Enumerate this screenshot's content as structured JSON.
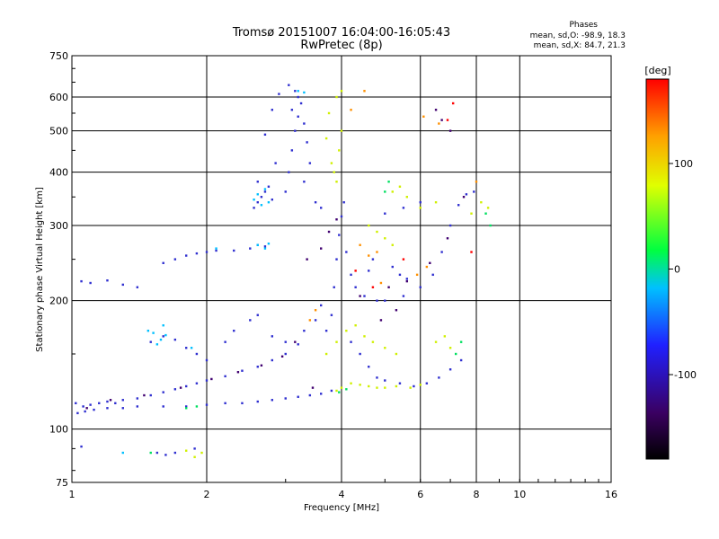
{
  "chart_data": {
    "type": "scatter",
    "title": "Tromsø 20151007 16:04:00-16:05:43",
    "subtitle": "RwPretec (8p)",
    "xlabel": "Frequency [MHz]",
    "ylabel": "Stationary phase Virtual Height [km]",
    "x_scale": "log",
    "y_scale": "log",
    "xlim": [
      1,
      16
    ],
    "ylim": [
      75,
      750
    ],
    "x_ticks": [
      1,
      2,
      4,
      6,
      8,
      10,
      16
    ],
    "y_ticks": [
      75,
      100,
      200,
      300,
      400,
      500,
      600,
      750
    ],
    "grid": true,
    "phase_stats": {
      "heading": "Phases",
      "o_line": "mean, sd,O: -98.9, 18.3",
      "x_line": "mean, sd,X:  84.7, 21.3"
    },
    "colorbar": {
      "label": "[deg]",
      "range": [
        -180,
        180
      ],
      "ticks": [
        100,
        0,
        -100
      ],
      "colormap": [
        "#000000",
        "#3a0060",
        "#2020ff",
        "#00c0ff",
        "#00ff40",
        "#e0ff00",
        "#ffa000",
        "#ff0000"
      ]
    },
    "series": [
      {
        "phase": -100,
        "color": "#3030d0",
        "points": [
          [
            1.02,
            115
          ],
          [
            1.06,
            113
          ],
          [
            1.1,
            114
          ],
          [
            1.15,
            115
          ],
          [
            1.2,
            116
          ],
          [
            1.25,
            115
          ],
          [
            1.3,
            117
          ],
          [
            1.4,
            118
          ],
          [
            1.5,
            120
          ],
          [
            1.6,
            122
          ],
          [
            1.7,
            124
          ],
          [
            1.8,
            126
          ],
          [
            1.9,
            128
          ],
          [
            2.0,
            130
          ],
          [
            2.2,
            133
          ],
          [
            2.4,
            137
          ],
          [
            2.6,
            140
          ],
          [
            2.8,
            145
          ],
          [
            3.0,
            150
          ],
          [
            3.2,
            158
          ],
          [
            1.03,
            109
          ],
          [
            1.07,
            110
          ],
          [
            1.12,
            111
          ],
          [
            1.2,
            112
          ],
          [
            1.3,
            112
          ],
          [
            1.4,
            113
          ],
          [
            1.6,
            113
          ],
          [
            1.8,
            113
          ],
          [
            2.0,
            114
          ],
          [
            2.2,
            115
          ],
          [
            2.4,
            115
          ],
          [
            2.6,
            116
          ],
          [
            2.8,
            117
          ],
          [
            3.0,
            118
          ],
          [
            3.2,
            119
          ],
          [
            3.4,
            120
          ],
          [
            3.6,
            121
          ],
          [
            3.8,
            123
          ],
          [
            1.05,
            222
          ],
          [
            1.1,
            220
          ],
          [
            1.2,
            223
          ],
          [
            1.3,
            218
          ],
          [
            1.4,
            215
          ],
          [
            1.6,
            245
          ],
          [
            1.7,
            250
          ],
          [
            1.8,
            255
          ],
          [
            1.9,
            258
          ],
          [
            2.0,
            260
          ],
          [
            2.1,
            262
          ],
          [
            2.3,
            262
          ],
          [
            2.5,
            265
          ],
          [
            2.6,
            270
          ],
          [
            2.7,
            268
          ],
          [
            2.55,
            330
          ],
          [
            2.6,
            340
          ],
          [
            2.65,
            350
          ],
          [
            2.7,
            360
          ],
          [
            2.75,
            370
          ],
          [
            2.6,
            380
          ],
          [
            2.8,
            345
          ],
          [
            3.0,
            360
          ],
          [
            3.05,
            400
          ],
          [
            3.1,
            450
          ],
          [
            3.15,
            500
          ],
          [
            3.1,
            560
          ],
          [
            3.15,
            620
          ],
          [
            3.2,
            600
          ],
          [
            3.3,
            520
          ],
          [
            3.35,
            470
          ],
          [
            3.4,
            420
          ],
          [
            3.3,
            380
          ],
          [
            3.5,
            340
          ],
          [
            3.6,
            330
          ],
          [
            3.2,
            540
          ],
          [
            3.25,
            580
          ],
          [
            3.05,
            640
          ],
          [
            2.9,
            610
          ],
          [
            2.8,
            560
          ],
          [
            2.7,
            490
          ],
          [
            2.85,
            420
          ],
          [
            3.8,
            185
          ],
          [
            3.85,
            215
          ],
          [
            3.9,
            250
          ],
          [
            3.95,
            285
          ],
          [
            4.0,
            315
          ],
          [
            4.05,
            340
          ],
          [
            4.1,
            260
          ],
          [
            4.2,
            230
          ],
          [
            4.3,
            215
          ],
          [
            4.5,
            205
          ],
          [
            4.8,
            200
          ],
          [
            5.0,
            200
          ],
          [
            5.5,
            205
          ],
          [
            6.0,
            215
          ],
          [
            6.4,
            230
          ],
          [
            6.7,
            260
          ],
          [
            7.0,
            300
          ],
          [
            7.3,
            335
          ],
          [
            7.6,
            355
          ],
          [
            7.9,
            360
          ],
          [
            5.0,
            320
          ],
          [
            5.5,
            330
          ],
          [
            6.0,
            340
          ],
          [
            5.2,
            240
          ],
          [
            5.4,
            230
          ],
          [
            5.6,
            225
          ],
          [
            4.6,
            235
          ],
          [
            4.7,
            250
          ],
          [
            1.5,
            160
          ],
          [
            1.6,
            165
          ],
          [
            1.7,
            162
          ],
          [
            1.8,
            155
          ],
          [
            1.9,
            150
          ],
          [
            2.0,
            145
          ],
          [
            2.2,
            160
          ],
          [
            2.3,
            170
          ],
          [
            2.5,
            180
          ],
          [
            2.6,
            185
          ],
          [
            2.8,
            165
          ],
          [
            3.0,
            160
          ],
          [
            3.3,
            170
          ],
          [
            3.5,
            180
          ],
          [
            3.6,
            195
          ],
          [
            3.7,
            170
          ],
          [
            4.2,
            160
          ],
          [
            4.4,
            150
          ],
          [
            4.6,
            140
          ],
          [
            4.8,
            132
          ],
          [
            5.0,
            130
          ],
          [
            5.4,
            128
          ],
          [
            5.8,
            126
          ],
          [
            6.2,
            128
          ],
          [
            6.6,
            132
          ],
          [
            7.0,
            138
          ],
          [
            7.4,
            145
          ],
          [
            1.55,
            88
          ],
          [
            1.62,
            87
          ],
          [
            1.7,
            88
          ],
          [
            1.88,
            90
          ],
          [
            1.05,
            91
          ]
        ]
      },
      {
        "phase": -140,
        "color": "#400070",
        "points": [
          [
            1.08,
            112
          ],
          [
            1.22,
            117
          ],
          [
            1.45,
            120
          ],
          [
            1.75,
            125
          ],
          [
            2.05,
            131
          ],
          [
            2.35,
            136
          ],
          [
            2.65,
            141
          ],
          [
            2.95,
            148
          ],
          [
            3.15,
            160
          ],
          [
            3.45,
            125
          ],
          [
            4.4,
            205
          ],
          [
            5.1,
            215
          ],
          [
            5.6,
            222
          ],
          [
            6.3,
            245
          ],
          [
            6.9,
            280
          ],
          [
            7.5,
            350
          ],
          [
            3.35,
            250
          ],
          [
            3.6,
            265
          ],
          [
            3.75,
            290
          ],
          [
            3.9,
            310
          ],
          [
            4.9,
            180
          ],
          [
            5.3,
            190
          ],
          [
            6.5,
            560
          ],
          [
            6.7,
            530
          ],
          [
            7.0,
            500
          ]
        ]
      },
      {
        "phase": -20,
        "color": "#00c0ff",
        "points": [
          [
            1.48,
            170
          ],
          [
            1.52,
            168
          ],
          [
            1.58,
            162
          ],
          [
            1.62,
            166
          ],
          [
            1.55,
            158
          ],
          [
            1.6,
            175
          ],
          [
            2.55,
            345
          ],
          [
            2.6,
            355
          ],
          [
            2.7,
            365
          ],
          [
            2.75,
            340
          ],
          [
            2.65,
            335
          ],
          [
            2.6,
            270
          ],
          [
            2.7,
            265
          ],
          [
            2.75,
            272
          ],
          [
            2.1,
            265
          ],
          [
            3.2,
            620
          ],
          [
            3.3,
            615
          ],
          [
            1.3,
            88
          ],
          [
            1.85,
            155
          ]
        ]
      },
      {
        "phase": 100,
        "color": "#d0f000",
        "points": [
          [
            3.9,
            123
          ],
          [
            4.0,
            125
          ],
          [
            4.2,
            128
          ],
          [
            4.4,
            127
          ],
          [
            4.6,
            126
          ],
          [
            4.8,
            125
          ],
          [
            5.0,
            125
          ],
          [
            5.3,
            126
          ],
          [
            5.7,
            125
          ],
          [
            6.0,
            127
          ],
          [
            3.7,
            150
          ],
          [
            3.9,
            160
          ],
          [
            4.1,
            170
          ],
          [
            4.3,
            175
          ],
          [
            4.5,
            165
          ],
          [
            4.7,
            160
          ],
          [
            5.0,
            155
          ],
          [
            5.3,
            150
          ],
          [
            6.5,
            160
          ],
          [
            6.8,
            165
          ],
          [
            7.0,
            155
          ],
          [
            3.8,
            420
          ],
          [
            3.85,
            400
          ],
          [
            3.9,
            380
          ],
          [
            3.95,
            450
          ],
          [
            4.0,
            500
          ],
          [
            3.75,
            550
          ],
          [
            3.9,
            600
          ],
          [
            4.0,
            620
          ],
          [
            3.7,
            480
          ],
          [
            5.2,
            360
          ],
          [
            5.4,
            370
          ],
          [
            5.6,
            350
          ],
          [
            7.8,
            320
          ],
          [
            8.2,
            340
          ],
          [
            8.5,
            330
          ],
          [
            6.0,
            330
          ],
          [
            6.5,
            340
          ],
          [
            4.6,
            300
          ],
          [
            4.8,
            290
          ],
          [
            5.0,
            280
          ],
          [
            5.2,
            270
          ],
          [
            1.95,
            88
          ],
          [
            1.88,
            86
          ],
          [
            1.8,
            89
          ]
        ]
      },
      {
        "phase": 140,
        "color": "#ff9000",
        "points": [
          [
            4.4,
            270
          ],
          [
            4.6,
            255
          ],
          [
            4.8,
            260
          ],
          [
            6.1,
            540
          ],
          [
            6.6,
            520
          ],
          [
            4.2,
            560
          ],
          [
            4.5,
            620
          ],
          [
            3.4,
            180
          ],
          [
            3.5,
            190
          ],
          [
            5.9,
            230
          ],
          [
            6.2,
            240
          ],
          [
            8.0,
            380
          ],
          [
            4.9,
            220
          ]
        ]
      },
      {
        "phase": 40,
        "color": "#00e060",
        "points": [
          [
            1.8,
            112
          ],
          [
            1.9,
            113
          ],
          [
            3.95,
            122
          ],
          [
            4.1,
            124
          ],
          [
            7.2,
            150
          ],
          [
            7.4,
            160
          ],
          [
            5.1,
            380
          ],
          [
            5.0,
            360
          ],
          [
            8.4,
            320
          ],
          [
            8.6,
            300
          ],
          [
            1.5,
            88
          ]
        ]
      },
      {
        "phase": 170,
        "color": "#ff0000",
        "points": [
          [
            6.9,
            530
          ],
          [
            4.3,
            235
          ],
          [
            5.5,
            250
          ],
          [
            7.8,
            260
          ],
          [
            4.7,
            215
          ],
          [
            7.1,
            580
          ]
        ]
      }
    ]
  }
}
